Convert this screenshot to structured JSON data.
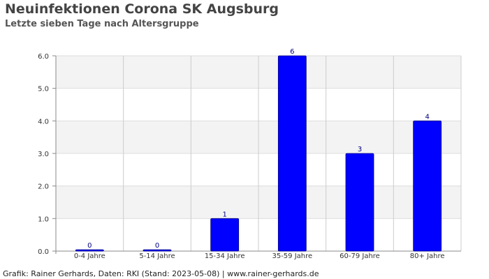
{
  "title": "Neuinfektionen Corona SK Augsburg",
  "subtitle": "Letzte sieben Tage nach Altersgruppe",
  "footer": "Grafik: Rainer Gerhards, Daten: RKI (Stand: 2023-05-08) | www.rainer-gerhards.de",
  "chart_data": {
    "type": "bar",
    "title": "Neuinfektionen Corona SK Augsburg",
    "subtitle": "Letzte sieben Tage nach Altersgruppe",
    "categories": [
      "0-4 Jahre",
      "5-14 Jahre",
      "15-34 Jahre",
      "35-59 Jahre",
      "60-79 Jahre",
      "80+ Jahre"
    ],
    "values": [
      0,
      0,
      1,
      6,
      3,
      4
    ],
    "data_labels": [
      "0",
      "0",
      "1",
      "6",
      "3",
      "4"
    ],
    "y_ticks": [
      "0.0",
      "1.0",
      "2.0",
      "3.0",
      "4.0",
      "5.0",
      "6.0"
    ],
    "ylim": [
      0,
      6
    ],
    "grid": true,
    "bar_color": "#0000ff",
    "bar_outline": "#000080",
    "label_color": "#000080"
  }
}
